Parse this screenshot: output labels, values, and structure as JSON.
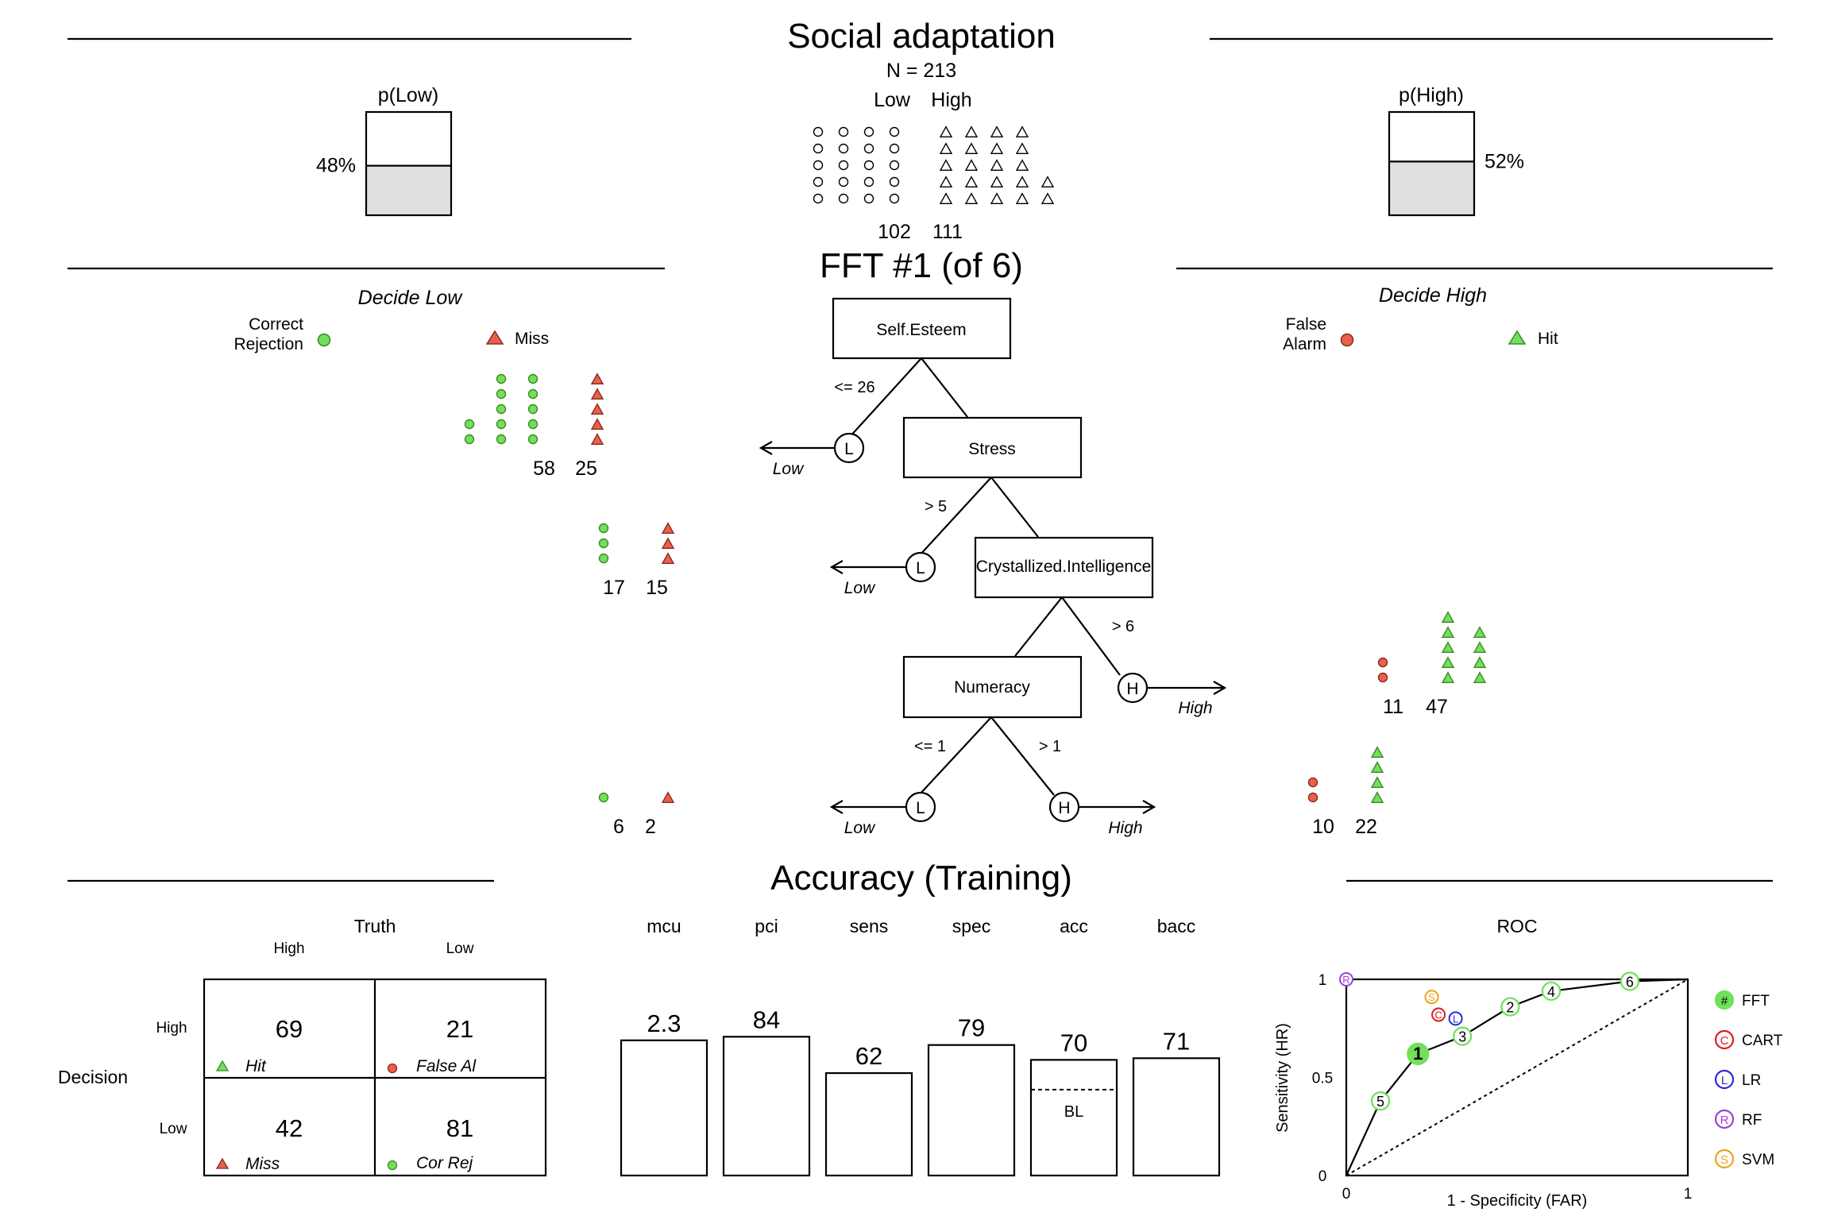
{
  "header": {
    "title": "Social adaptation",
    "n_label": "N = 213",
    "low_label": "Low",
    "high_label": "High",
    "low_count": "102",
    "high_count": "111",
    "p_low": {
      "label": "p(Low)",
      "value_text": "48%",
      "value": 0.48
    },
    "p_high": {
      "label": "p(High)",
      "value_text": "52%",
      "value": 0.52
    }
  },
  "tree": {
    "title": "FFT #1 (of 6)",
    "decide_low_title": "Decide Low",
    "decide_high_title": "Decide High",
    "legend": {
      "correct_rejection": [
        "Correct",
        "Rejection"
      ],
      "miss": "Miss",
      "false_alarm": [
        "False",
        "Alarm"
      ],
      "hit": "Hit"
    },
    "nodes": [
      {
        "cue": "Self.Esteem",
        "exit_threshold": "<= 26",
        "exit_leaf": "L",
        "exit_label": "Low",
        "cr": 58,
        "miss": 25
      },
      {
        "cue": "Stress",
        "exit_threshold": "> 5",
        "exit_leaf": "L",
        "exit_label": "Low",
        "cr": 17,
        "miss": 15
      },
      {
        "cue": "Crystallized.Intelligence",
        "exit_threshold": "> 6",
        "exit_leaf": "H",
        "exit_label": "High",
        "fa": 11,
        "hit": 47
      },
      {
        "cue": "Numeracy",
        "low_threshold": "<= 1",
        "low_leaf": "L",
        "low_label": "Low",
        "cr": 6,
        "miss": 2,
        "high_threshold": "> 1",
        "high_leaf": "H",
        "high_label": "High",
        "fa": 10,
        "hit": 22
      }
    ]
  },
  "accuracy": {
    "title": "Accuracy (Training)",
    "confusion": {
      "truth_label": "Truth",
      "decision_label": "Decision",
      "col_high": "High",
      "col_low": "Low",
      "row_high": "High",
      "row_low": "Low",
      "hit": "69",
      "hit_label": "Hit",
      "fa": "21",
      "fa_label": "False Al",
      "miss": "42",
      "miss_label": "Miss",
      "cr": "81",
      "cr_label": "Cor Rej"
    },
    "bl_label": "BL",
    "bl_value": 52
  },
  "colors": {
    "green": "#71e05a",
    "red": "#e8614c",
    "box_fill": "#e0e0e0",
    "cart": "#e21a1a",
    "lr": "#2a2ad6",
    "rf": "#9c3fd8",
    "svm": "#eba419"
  },
  "chart_data": [
    {
      "type": "bar",
      "categories": [
        "mcu",
        "pci",
        "sens",
        "spec",
        "acc",
        "bacc"
      ],
      "values": [
        2.3,
        84,
        62,
        79,
        70,
        71
      ],
      "value_labels": [
        "2.3",
        "84",
        "62",
        "79",
        "70",
        "71"
      ]
    },
    {
      "type": "scatter",
      "title": "ROC",
      "xlabel": "1 - Specificity (FAR)",
      "ylabel": "Sensitivity (HR)",
      "x_ticks": [
        "0",
        "1"
      ],
      "y_ticks": [
        "0",
        "0.5",
        "1"
      ],
      "xlim": [
        0,
        1
      ],
      "ylim": [
        0,
        1
      ],
      "fft_points": [
        {
          "id": "5",
          "x": 0.1,
          "y": 0.38
        },
        {
          "id": "1",
          "x": 0.21,
          "y": 0.62
        },
        {
          "id": "3",
          "x": 0.34,
          "y": 0.71
        },
        {
          "id": "2",
          "x": 0.48,
          "y": 0.86
        },
        {
          "id": "4",
          "x": 0.6,
          "y": 0.94
        },
        {
          "id": "6",
          "x": 0.83,
          "y": 0.99
        }
      ],
      "other_points": [
        {
          "id": "C",
          "name": "CART",
          "x": 0.27,
          "y": 0.82
        },
        {
          "id": "L",
          "name": "LR",
          "x": 0.32,
          "y": 0.8
        },
        {
          "id": "S",
          "name": "SVM",
          "x": 0.25,
          "y": 0.91
        },
        {
          "id": "R",
          "name": "RF",
          "x": 0.0,
          "y": 1.0
        }
      ],
      "legend": [
        {
          "symbol": "#",
          "name": "FFT"
        },
        {
          "symbol": "C",
          "name": "CART"
        },
        {
          "symbol": "L",
          "name": "LR"
        },
        {
          "symbol": "R",
          "name": "RF"
        },
        {
          "symbol": "S",
          "name": "SVM"
        }
      ]
    }
  ]
}
